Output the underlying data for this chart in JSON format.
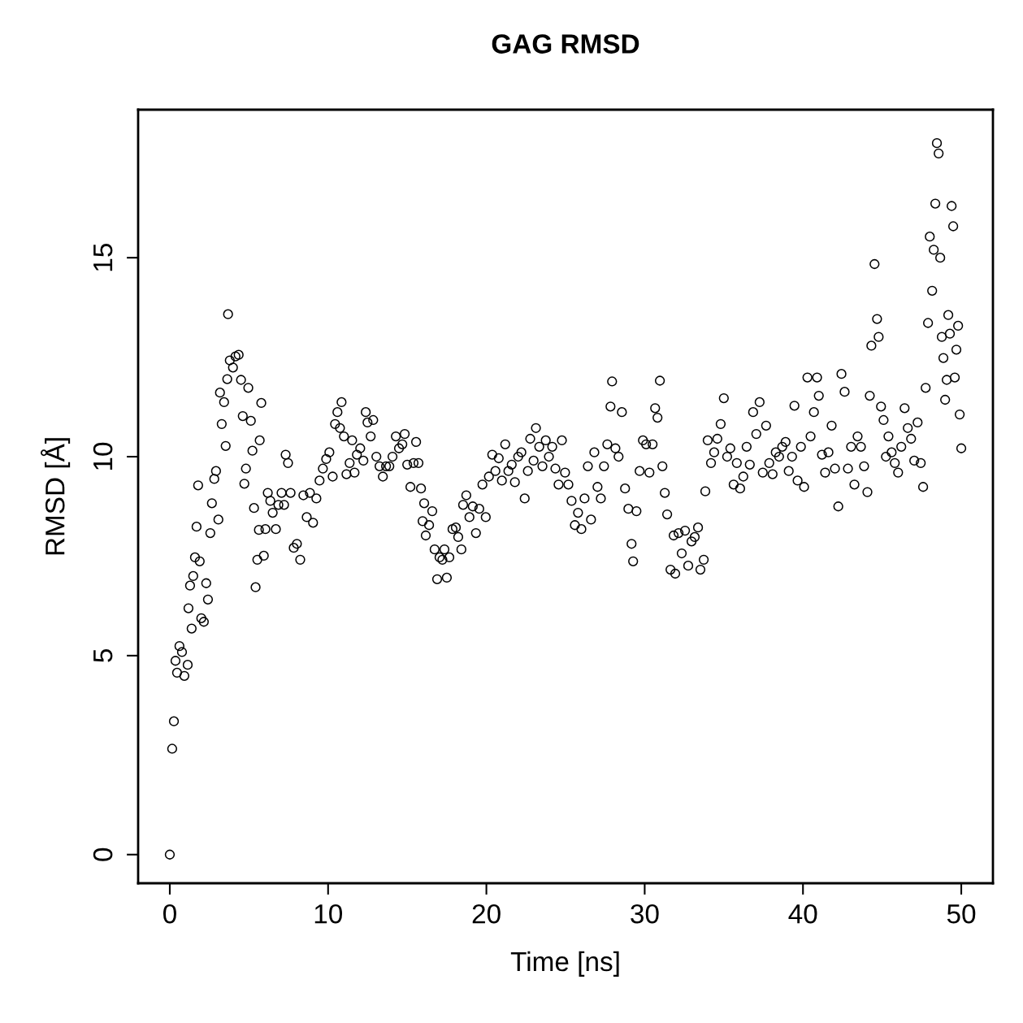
{
  "chart_data": {
    "type": "scatter",
    "title": "GAG RMSD",
    "xlabel": "Time [ns]",
    "ylabel": "RMSD [Å]",
    "xlim": [
      -2,
      52
    ],
    "ylim": [
      -0.72,
      18.72
    ],
    "xticks": [
      0,
      10,
      20,
      30,
      40,
      50
    ],
    "yticks": [
      0,
      5,
      10,
      15
    ],
    "grid": false,
    "marker": "circle",
    "series": [
      {
        "color": "#000000",
        "x": [
          0.0,
          0.15,
          0.26,
          0.36,
          0.46,
          0.61,
          0.77,
          0.92,
          1.13,
          1.18,
          1.28,
          1.38,
          1.48,
          1.59,
          1.69,
          1.79,
          1.89,
          1.99,
          2.15,
          2.3,
          2.41,
          2.56,
          2.66,
          2.81,
          2.92,
          3.07,
          3.17,
          3.28,
          3.43,
          3.53,
          3.63,
          3.68,
          3.79,
          3.99,
          4.15,
          4.35,
          4.5,
          4.61,
          4.71,
          4.81,
          4.96,
          5.12,
          5.22,
          5.32,
          5.42,
          5.53,
          5.63,
          5.68,
          5.78,
          5.94,
          6.04,
          6.19,
          6.35,
          6.5,
          6.7,
          6.86,
          7.06,
          7.22,
          7.32,
          7.47,
          7.63,
          7.83,
          8.03,
          8.24,
          8.44,
          8.65,
          8.85,
          9.05,
          9.26,
          9.46,
          9.67,
          9.88,
          10.08,
          10.29,
          10.44,
          10.59,
          10.75,
          10.85,
          11.0,
          11.16,
          11.36,
          11.52,
          11.67,
          11.82,
          12.03,
          12.23,
          12.38,
          12.49,
          12.69,
          12.85,
          13.05,
          13.25,
          13.46,
          13.66,
          13.87,
          14.07,
          14.28,
          14.48,
          14.69,
          14.84,
          15.0,
          15.2,
          15.4,
          15.56,
          15.71,
          15.87,
          15.97,
          16.07,
          16.17,
          16.38,
          16.58,
          16.73,
          16.89,
          17.04,
          17.22,
          17.35,
          17.5,
          17.66,
          17.86,
          18.07,
          18.22,
          18.42,
          18.53,
          18.73,
          18.93,
          19.14,
          19.34,
          19.55,
          19.75,
          19.96,
          20.16,
          20.37,
          20.57,
          20.78,
          20.98,
          21.19,
          21.39,
          21.6,
          21.8,
          22.01,
          22.21,
          22.42,
          22.62,
          22.77,
          22.98,
          23.13,
          23.34,
          23.54,
          23.75,
          23.95,
          24.16,
          24.36,
          24.56,
          24.77,
          24.97,
          25.18,
          25.38,
          25.59,
          25.79,
          26.0,
          26.2,
          26.41,
          26.61,
          26.82,
          27.02,
          27.23,
          27.43,
          27.64,
          27.84,
          27.94,
          28.15,
          28.35,
          28.56,
          28.76,
          28.97,
          29.17,
          29.27,
          29.48,
          29.68,
          29.89,
          30.09,
          30.3,
          30.5,
          30.66,
          30.81,
          30.96,
          31.12,
          31.27,
          31.42,
          31.63,
          31.83,
          31.93,
          32.14,
          32.34,
          32.55,
          32.75,
          32.96,
          33.16,
          33.37,
          33.52,
          33.73,
          33.83,
          33.98,
          34.19,
          34.39,
          34.59,
          34.8,
          35.0,
          35.21,
          35.41,
          35.62,
          35.82,
          36.03,
          36.23,
          36.44,
          36.64,
          36.85,
          37.05,
          37.26,
          37.46,
          37.67,
          37.87,
          38.08,
          38.28,
          38.49,
          38.69,
          38.9,
          39.1,
          39.31,
          39.46,
          39.66,
          39.87,
          40.07,
          40.28,
          40.48,
          40.69,
          40.89,
          41.0,
          41.2,
          41.4,
          41.61,
          41.81,
          42.02,
          42.23,
          42.43,
          42.63,
          42.84,
          43.04,
          43.25,
          43.45,
          43.66,
          43.86,
          44.07,
          44.22,
          44.32,
          44.52,
          44.68,
          44.78,
          44.93,
          45.09,
          45.24,
          45.4,
          45.6,
          45.8,
          46.01,
          46.21,
          46.42,
          46.62,
          46.83,
          47.03,
          47.24,
          47.44,
          47.59,
          47.75,
          47.9,
          48.01,
          48.16,
          48.26,
          48.36,
          48.46,
          48.57,
          48.67,
          48.77,
          48.87,
          48.98,
          49.08,
          49.18,
          49.28,
          49.39,
          49.49,
          49.59,
          49.69,
          49.8,
          49.9,
          50.0
        ],
        "values": [
          0.0,
          2.66,
          3.35,
          4.87,
          4.57,
          5.24,
          5.09,
          4.49,
          4.77,
          6.19,
          6.76,
          5.68,
          7.0,
          7.47,
          8.24,
          9.28,
          7.37,
          5.94,
          5.85,
          6.82,
          6.41,
          8.08,
          8.83,
          9.44,
          9.64,
          8.42,
          11.61,
          10.82,
          11.37,
          10.27,
          11.95,
          13.58,
          12.42,
          12.24,
          12.52,
          12.56,
          11.93,
          11.02,
          9.32,
          9.7,
          11.73,
          10.9,
          10.15,
          8.71,
          6.72,
          7.41,
          8.16,
          10.41,
          11.35,
          7.51,
          8.18,
          9.09,
          8.89,
          8.59,
          8.18,
          8.79,
          9.09,
          8.79,
          10.05,
          9.84,
          9.09,
          7.71,
          7.81,
          7.41,
          9.03,
          8.48,
          9.09,
          8.34,
          8.95,
          9.4,
          9.7,
          9.94,
          10.11,
          9.5,
          10.82,
          11.12,
          10.72,
          11.37,
          10.51,
          9.56,
          9.84,
          10.41,
          9.6,
          10.05,
          10.21,
          9.9,
          11.12,
          10.86,
          10.51,
          10.92,
          10.0,
          9.76,
          9.5,
          9.76,
          9.76,
          10.0,
          10.51,
          10.21,
          10.31,
          10.57,
          9.8,
          9.24,
          9.84,
          10.37,
          9.84,
          9.2,
          8.38,
          8.83,
          8.02,
          8.28,
          8.63,
          7.67,
          6.92,
          7.47,
          7.41,
          7.67,
          6.96,
          7.47,
          8.18,
          8.22,
          7.98,
          7.67,
          8.79,
          9.03,
          8.48,
          8.75,
          8.08,
          8.69,
          9.3,
          8.48,
          9.5,
          10.05,
          9.64,
          9.96,
          9.4,
          10.31,
          9.64,
          9.8,
          9.36,
          10.0,
          10.11,
          8.95,
          9.64,
          10.45,
          9.9,
          10.72,
          10.25,
          9.76,
          10.41,
          10.0,
          10.25,
          9.7,
          9.3,
          10.41,
          9.6,
          9.3,
          8.89,
          8.28,
          8.59,
          8.18,
          8.95,
          9.76,
          8.42,
          10.11,
          9.24,
          8.95,
          9.76,
          10.31,
          11.26,
          11.89,
          10.21,
          10.0,
          11.12,
          9.2,
          8.69,
          7.81,
          7.37,
          8.63,
          9.64,
          10.41,
          10.31,
          9.6,
          10.31,
          11.22,
          10.98,
          11.91,
          9.76,
          9.09,
          8.55,
          7.16,
          8.02,
          7.06,
          8.08,
          7.57,
          8.14,
          7.26,
          7.87,
          7.98,
          8.22,
          7.16,
          7.41,
          9.13,
          10.41,
          9.84,
          10.11,
          10.45,
          10.82,
          11.47,
          10.0,
          10.21,
          9.3,
          9.84,
          9.2,
          9.5,
          10.25,
          9.8,
          11.12,
          10.57,
          11.37,
          9.6,
          10.78,
          9.84,
          9.56,
          10.11,
          10.0,
          10.25,
          10.37,
          9.64,
          10.0,
          11.28,
          9.4,
          10.25,
          9.24,
          11.99,
          10.51,
          11.12,
          11.99,
          11.53,
          10.05,
          9.6,
          10.11,
          10.78,
          9.7,
          8.75,
          12.08,
          11.63,
          9.7,
          10.25,
          9.3,
          10.51,
          10.25,
          9.76,
          9.11,
          11.53,
          12.79,
          14.84,
          13.46,
          13.01,
          11.26,
          10.92,
          10.0,
          10.51,
          10.11,
          9.84,
          9.6,
          10.25,
          11.22,
          10.72,
          10.45,
          9.9,
          10.86,
          9.84,
          9.24,
          11.73,
          13.36,
          15.53,
          14.17,
          15.2,
          16.36,
          17.88,
          17.62,
          15.0,
          13.01,
          12.48,
          11.43,
          11.93,
          13.56,
          13.09,
          16.3,
          15.79,
          11.99,
          12.69,
          13.29,
          11.06,
          10.21
        ]
      }
    ]
  }
}
